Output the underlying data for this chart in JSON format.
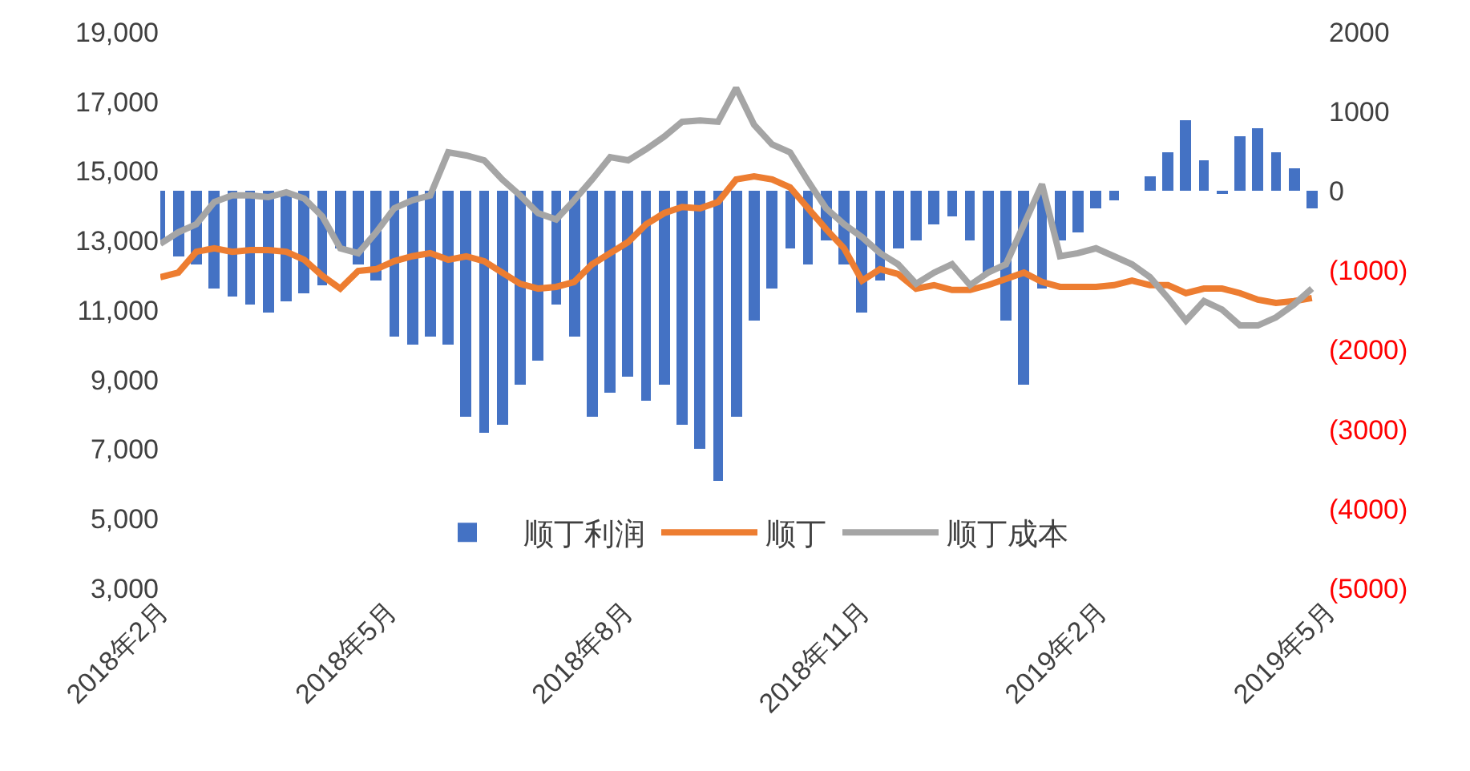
{
  "chart_data": {
    "type": "bar",
    "x": [
      "2018-02-01",
      "2018-02-08",
      "2018-02-15",
      "2018-02-22",
      "2018-03-01",
      "2018-03-08",
      "2018-03-15",
      "2018-03-22",
      "2018-03-29",
      "2018-04-05",
      "2018-04-12",
      "2018-04-19",
      "2018-04-26",
      "2018-05-03",
      "2018-05-10",
      "2018-05-17",
      "2018-05-24",
      "2018-05-31",
      "2018-06-07",
      "2018-06-14",
      "2018-06-21",
      "2018-06-28",
      "2018-07-05",
      "2018-07-12",
      "2018-07-19",
      "2018-07-26",
      "2018-08-02",
      "2018-08-09",
      "2018-08-16",
      "2018-08-23",
      "2018-08-30",
      "2018-09-06",
      "2018-09-13",
      "2018-09-20",
      "2018-09-27",
      "2018-10-04",
      "2018-10-11",
      "2018-10-18",
      "2018-10-25",
      "2018-11-01",
      "2018-11-08",
      "2018-11-15",
      "2018-11-22",
      "2018-11-29",
      "2018-12-06",
      "2018-12-13",
      "2018-12-20",
      "2018-12-27",
      "2019-01-03",
      "2019-01-10",
      "2019-01-17",
      "2019-01-24",
      "2019-01-31",
      "2019-02-07",
      "2019-02-14",
      "2019-02-21",
      "2019-02-28",
      "2019-03-07",
      "2019-03-14",
      "2019-03-21",
      "2019-03-28",
      "2019-04-04",
      "2019-04-11",
      "2019-04-18",
      "2019-04-25"
    ],
    "series": [
      {
        "name": "顺丁利润",
        "axis": "y2",
        "color": "#4472c4",
        "values": [
          -620,
          -820,
          -920,
          -1230,
          -1330,
          -1430,
          -1530,
          -1390,
          -1290,
          -1190,
          -720,
          -920,
          -1130,
          -1830,
          -1930,
          -1830,
          -1930,
          -2840,
          -3040,
          -2940,
          -2440,
          -2130,
          -1430,
          -1830,
          -2840,
          -2540,
          -2330,
          -2640,
          -2440,
          -2940,
          -3240,
          -3650,
          -2840,
          -1630,
          -1230,
          -720,
          -920,
          -620,
          -920,
          -1530,
          -1130,
          -720,
          -620,
          -420,
          -320,
          -620,
          -1030,
          -1630,
          -2440,
          -1230,
          -620,
          -520,
          -220,
          -120,
          0,
          180,
          490,
          890,
          390,
          -20,
          690,
          790,
          490,
          290,
          -220
        ]
      },
      {
        "name": "顺丁",
        "type": "line",
        "color": "#ed7d31",
        "values": [
          11950,
          12080,
          12680,
          12780,
          12680,
          12730,
          12730,
          12680,
          12450,
          11990,
          11620,
          12130,
          12180,
          12410,
          12550,
          12640,
          12450,
          12550,
          12410,
          12080,
          11760,
          11620,
          11670,
          11810,
          12320,
          12640,
          12960,
          13470,
          13790,
          13970,
          13930,
          14110,
          14760,
          14850,
          14760,
          14530,
          13930,
          13330,
          12780,
          11850,
          12180,
          12040,
          11620,
          11720,
          11580,
          11580,
          11720,
          11900,
          12080,
          11810,
          11670,
          11670,
          11670,
          11720,
          11850,
          11720,
          11720,
          11490,
          11620,
          11620,
          11490,
          11300,
          11210,
          11260,
          11350
        ]
      },
      {
        "name": "顺丁成本",
        "type": "line",
        "color": "#a5a5a5",
        "values": [
          12910,
          13240,
          13470,
          14110,
          14300,
          14300,
          14250,
          14390,
          14210,
          13700,
          12780,
          12640,
          13240,
          13930,
          14160,
          14300,
          15540,
          15450,
          15310,
          14760,
          14300,
          13790,
          13610,
          14160,
          14760,
          15400,
          15310,
          15630,
          15990,
          16420,
          16460,
          16420,
          17390,
          16330,
          15770,
          15540,
          14710,
          13930,
          13470,
          13100,
          12640,
          12320,
          11760,
          12080,
          12320,
          11720,
          12080,
          12320,
          13470,
          14620,
          12550,
          12640,
          12780,
          12550,
          12320,
          11950,
          11350,
          10700,
          11260,
          11020,
          10560,
          10560,
          10790,
          11160,
          11620
        ]
      }
    ],
    "xlim": [
      "2018-02-01",
      "2019-05-01"
    ],
    "xticks": [
      {
        "value": "2018-02-01",
        "label": "2018年2月"
      },
      {
        "value": "2018-05-01",
        "label": "2018年5月"
      },
      {
        "value": "2018-08-01",
        "label": "2018年8月"
      },
      {
        "value": "2018-11-01",
        "label": "2018年11月"
      },
      {
        "value": "2019-02-01",
        "label": "2019年2月"
      },
      {
        "value": "2019-05-01",
        "label": "2019年5月"
      }
    ],
    "ylim": [
      3000,
      19000
    ],
    "yticks": [
      {
        "value": 3000,
        "label": "3,000"
      },
      {
        "value": 5000,
        "label": "5,000"
      },
      {
        "value": 7000,
        "label": "7,000"
      },
      {
        "value": 9000,
        "label": "9,000"
      },
      {
        "value": 11000,
        "label": "11,000"
      },
      {
        "value": 13000,
        "label": "13,000"
      },
      {
        "value": 15000,
        "label": "15,000"
      },
      {
        "value": 17000,
        "label": "17,000"
      },
      {
        "value": 19000,
        "label": "19,000"
      }
    ],
    "y2lim": [
      -5000,
      2000
    ],
    "y2ticks": [
      {
        "value": -5000,
        "label": "(5000)"
      },
      {
        "value": -4000,
        "label": "(4000)"
      },
      {
        "value": -3000,
        "label": "(3000)"
      },
      {
        "value": -2000,
        "label": "(2000)"
      },
      {
        "value": -1000,
        "label": "(1000)"
      },
      0,
      1000,
      2000
    ],
    "legend": "bottom",
    "line_style": "solid"
  }
}
